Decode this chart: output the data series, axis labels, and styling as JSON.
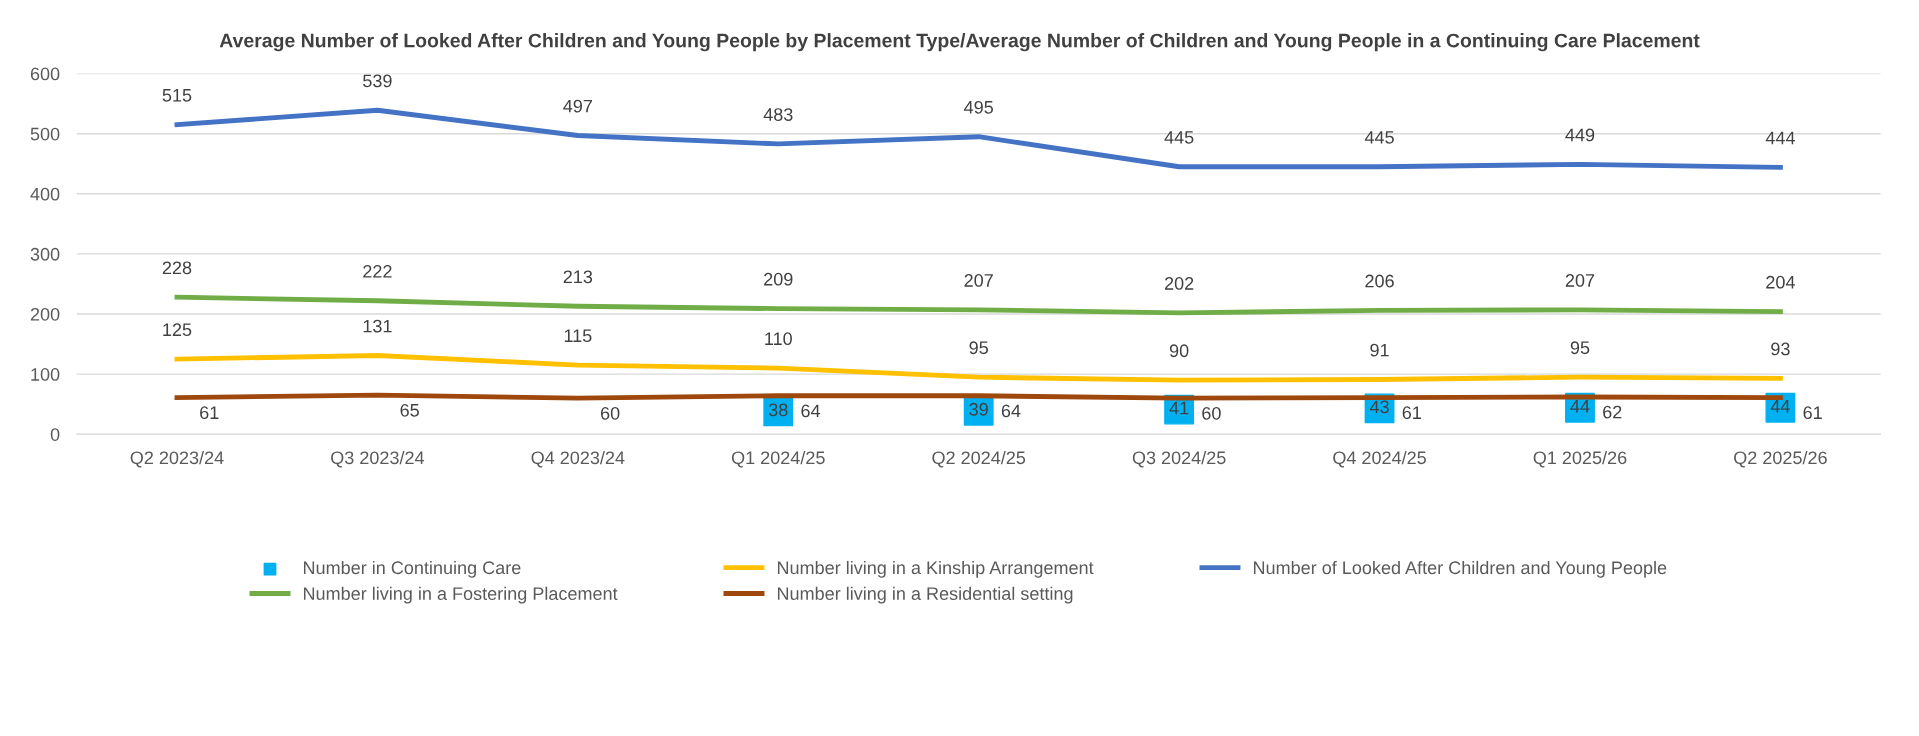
{
  "chart_data": {
    "type": "line",
    "title": "Average Number of Looked After Children and Young People by Placement Type/Average Number of Children and Young People in a Continuing Care Placement",
    "categories": [
      "Q2 2023/24",
      "Q3 2023/24",
      "Q4 2023/24",
      "Q1 2024/25",
      "Q2 2024/25",
      "Q3 2024/25",
      "Q4 2024/25",
      "Q1 2025/26",
      "Q2 2025/26"
    ],
    "series": [
      {
        "name": "Number in Continuing Care",
        "type": "scatter",
        "marker": "square",
        "color": "#00b0f0",
        "values": [
          null,
          null,
          null,
          38,
          39,
          41,
          43,
          44,
          44
        ]
      },
      {
        "name": "Number living in a Kinship Arrangement",
        "color": "#ffc000",
        "values": [
          125,
          131,
          115,
          110,
          95,
          90,
          91,
          95,
          93
        ]
      },
      {
        "name": "Number of Looked After Children and Young People",
        "color": "#4472c4",
        "values": [
          515,
          539,
          497,
          483,
          495,
          445,
          445,
          449,
          444
        ]
      },
      {
        "name": "Number living in a Fostering Placement",
        "color": "#70ad47",
        "values": [
          228,
          222,
          213,
          209,
          207,
          202,
          206,
          207,
          204
        ]
      },
      {
        "name": "Number living in a Residential setting",
        "color": "#9e480e",
        "values": [
          61,
          65,
          60,
          64,
          64,
          60,
          61,
          62,
          61
        ]
      }
    ],
    "ylim": [
      0,
      600
    ],
    "yticks": [
      0,
      100,
      200,
      300,
      400,
      500,
      600
    ],
    "grid": "y",
    "legend": "bottom",
    "data_labels": true,
    "marker": "none",
    "line_style": "solid"
  }
}
